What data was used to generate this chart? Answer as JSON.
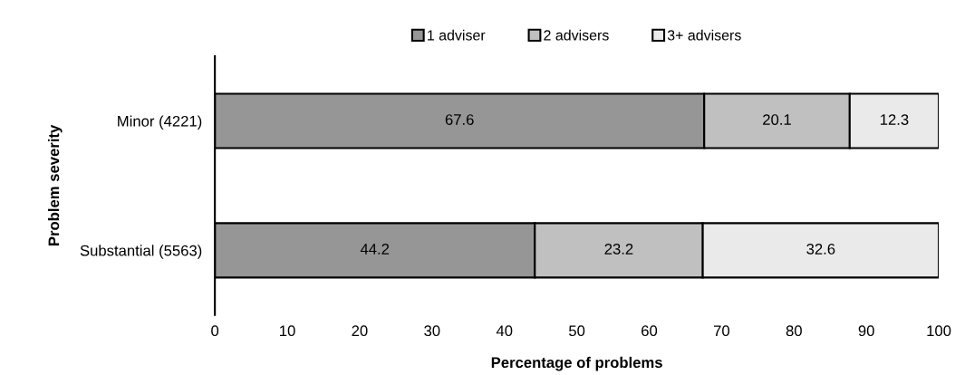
{
  "chart_data": {
    "type": "bar",
    "orientation": "horizontal",
    "stacked": true,
    "categories": [
      "Minor (4221)",
      "Substantial (5563)"
    ],
    "series": [
      {
        "name": "1 adviser",
        "color": "#969696",
        "values": [
          67.6,
          44.2
        ]
      },
      {
        "name": "2 advisers",
        "color": "#c0c0c0",
        "values": [
          20.1,
          23.2
        ]
      },
      {
        "name": "3+ advisers",
        "color": "#eaeaea",
        "values": [
          12.3,
          32.6
        ]
      }
    ],
    "xlim": [
      0,
      100
    ],
    "xticks": [
      0,
      10,
      20,
      30,
      40,
      50,
      60,
      70,
      80,
      90,
      100
    ],
    "xlabel": "Percentage of problems",
    "ylabel": "Problem severity",
    "data_labels": true,
    "grid": false,
    "legend": "top"
  }
}
